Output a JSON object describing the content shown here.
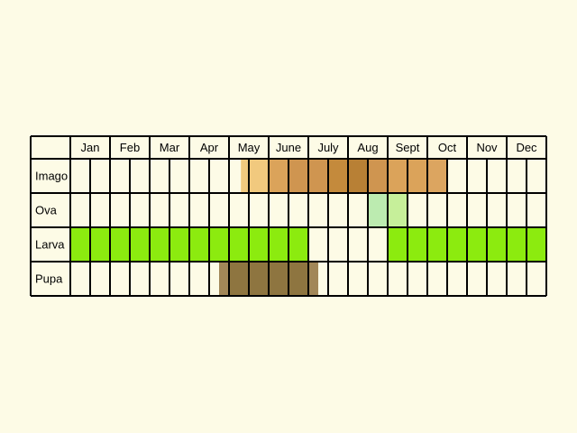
{
  "chart_data": {
    "type": "table",
    "title": "",
    "months": [
      "Jan",
      "Feb",
      "Mar",
      "Apr",
      "May",
      "June",
      "July",
      "Aug",
      "Sept",
      "Oct",
      "Nov",
      "Dec"
    ],
    "stages": [
      "Imago",
      "Ova",
      "Larva",
      "Pupa"
    ],
    "subdivisions_per_month": 2,
    "cells": {
      "Imago": [
        {
          "start": 8.6,
          "end": 9.0,
          "color": "#f1c97e"
        },
        {
          "start": 9.0,
          "end": 10.0,
          "color": "#f1c97e"
        },
        {
          "start": 10.0,
          "end": 11.0,
          "color": "#dba35a"
        },
        {
          "start": 11.0,
          "end": 13.0,
          "color": "#cf9550"
        },
        {
          "start": 13.0,
          "end": 14.0,
          "color": "#c48a3c"
        },
        {
          "start": 14.0,
          "end": 15.0,
          "color": "#b88035"
        },
        {
          "start": 15.0,
          "end": 16.0,
          "color": "#cf9550"
        },
        {
          "start": 16.0,
          "end": 18.0,
          "color": "#dba35a"
        },
        {
          "start": 18.0,
          "end": 19.0,
          "color": "#dca560"
        }
      ],
      "Ova": [
        {
          "start": 15.0,
          "end": 16.0,
          "color": "#bcebb0"
        },
        {
          "start": 16.0,
          "end": 17.0,
          "color": "#c6ef9a"
        }
      ],
      "Larva": [
        {
          "start": 0.0,
          "end": 12.0,
          "color": "#8ceb0f"
        },
        {
          "start": 16.0,
          "end": 24.0,
          "color": "#8ceb0f"
        }
      ],
      "Pupa": [
        {
          "start": 7.5,
          "end": 8.0,
          "color": "#a28758"
        },
        {
          "start": 8.0,
          "end": 12.0,
          "color": "#8e7540"
        },
        {
          "start": 12.0,
          "end": 12.5,
          "color": "#a28758"
        }
      ]
    }
  },
  "colors": {
    "background": "#fdfbe6",
    "cell": "#fdfbe6",
    "grid_line": "#000000"
  }
}
